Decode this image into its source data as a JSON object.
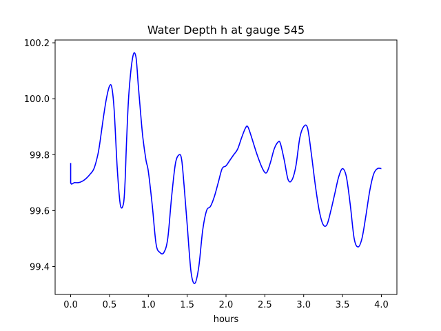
{
  "chart_data": {
    "type": "line",
    "title": "Water Depth h at gauge 545",
    "xlabel": "hours",
    "ylabel": "",
    "xlim": [
      -0.2,
      4.2
    ],
    "ylim": [
      99.3,
      100.21
    ],
    "xticks": [
      0.0,
      0.5,
      1.0,
      1.5,
      2.0,
      2.5,
      3.0,
      3.5,
      4.0
    ],
    "xtick_labels": [
      "0.0",
      "0.5",
      "1.0",
      "1.5",
      "2.0",
      "2.5",
      "3.0",
      "3.5",
      "4.0"
    ],
    "yticks": [
      99.4,
      99.6,
      99.8,
      100.0,
      100.2
    ],
    "ytick_labels": [
      "99.4",
      "99.6",
      "99.8",
      "100.0",
      "100.2"
    ],
    "grid": false,
    "series": [
      {
        "color": "#0000ff",
        "x": [
          0.0,
          0.0,
          0.05,
          0.1,
          0.15,
          0.2,
          0.25,
          0.3,
          0.35,
          0.38,
          0.42,
          0.46,
          0.5,
          0.53,
          0.56,
          0.6,
          0.64,
          0.68,
          0.7,
          0.72,
          0.75,
          0.8,
          0.84,
          0.87,
          0.9,
          0.93,
          0.97,
          1.0,
          1.05,
          1.1,
          1.15,
          1.2,
          1.25,
          1.3,
          1.35,
          1.4,
          1.43,
          1.46,
          1.5,
          1.55,
          1.6,
          1.65,
          1.7,
          1.75,
          1.8,
          1.85,
          1.9,
          1.95,
          2.0,
          2.05,
          2.1,
          2.15,
          2.2,
          2.25,
          2.28,
          2.32,
          2.4,
          2.47,
          2.52,
          2.57,
          2.62,
          2.67,
          2.7,
          2.75,
          2.8,
          2.85,
          2.9,
          2.95,
          3.0,
          3.05,
          3.1,
          3.15,
          3.2,
          3.25,
          3.3,
          3.35,
          3.4,
          3.45,
          3.5,
          3.55,
          3.6,
          3.65,
          3.7,
          3.75,
          3.8,
          3.85,
          3.9,
          3.95,
          4.0
        ],
        "y": [
          99.77,
          99.7,
          99.7,
          99.7,
          99.705,
          99.715,
          99.73,
          99.75,
          99.8,
          99.85,
          99.93,
          100.0,
          100.045,
          100.04,
          99.96,
          99.75,
          99.62,
          99.625,
          99.7,
          99.85,
          100.02,
          100.15,
          100.15,
          100.05,
          99.95,
          99.86,
          99.78,
          99.74,
          99.62,
          99.48,
          99.45,
          99.45,
          99.5,
          99.65,
          99.77,
          99.8,
          99.78,
          99.69,
          99.55,
          99.38,
          99.34,
          99.4,
          99.53,
          99.6,
          99.615,
          99.65,
          99.7,
          99.75,
          99.76,
          99.78,
          99.8,
          99.82,
          99.86,
          99.895,
          99.9,
          99.87,
          99.8,
          99.75,
          99.735,
          99.77,
          99.82,
          99.845,
          99.84,
          99.78,
          99.71,
          99.71,
          99.76,
          99.86,
          99.9,
          99.895,
          99.8,
          99.69,
          99.6,
          99.55,
          99.55,
          99.6,
          99.66,
          99.72,
          99.75,
          99.72,
          99.62,
          99.5,
          99.47,
          99.5,
          99.58,
          99.67,
          99.73,
          99.75,
          99.75
        ]
      }
    ]
  }
}
